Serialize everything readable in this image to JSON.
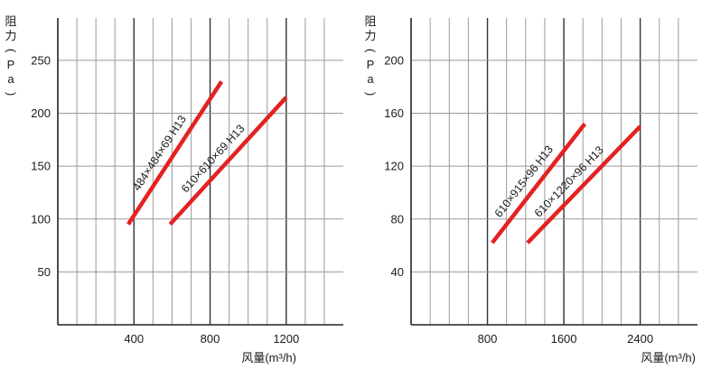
{
  "chart_data": [
    {
      "type": "line",
      "ylabel": "阻力(Pa)",
      "xlabel": "风量(m³/h)",
      "xlim": [
        0,
        1500
      ],
      "ylim": [
        0,
        290
      ],
      "x_ticks": [
        400,
        800,
        1200
      ],
      "y_ticks": [
        50,
        100,
        150,
        200,
        250
      ],
      "grid": true,
      "series": [
        {
          "name": "484×484×69 H13",
          "x": [
            370,
            860
          ],
          "y": [
            95,
            230
          ]
        },
        {
          "name": "610×610×69 H13",
          "x": [
            590,
            1200
          ],
          "y": [
            95,
            215
          ]
        }
      ],
      "line_color": "#e32222"
    },
    {
      "type": "line",
      "ylabel": "阻力(Pa)",
      "xlabel": "风量(m³/h)",
      "xlim": [
        0,
        3000
      ],
      "ylim": [
        0,
        232
      ],
      "x_ticks": [
        800,
        1600,
        2400
      ],
      "y_ticks": [
        40,
        80,
        120,
        160,
        200
      ],
      "grid": true,
      "series": [
        {
          "name": "610×915×96 H13",
          "x": [
            850,
            1820
          ],
          "y": [
            62,
            152
          ]
        },
        {
          "name": "610×1220×96 H13",
          "x": [
            1220,
            2400
          ],
          "y": [
            62,
            150
          ]
        }
      ],
      "line_color": "#e32222"
    }
  ]
}
